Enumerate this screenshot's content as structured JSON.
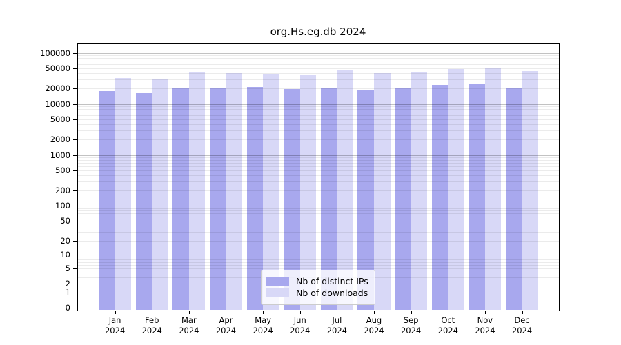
{
  "title": "org.Hs.eg.db 2024",
  "colors": {
    "distinct_ips": "#a8a8ee",
    "downloads": "#d8d8f7",
    "grid_major": "rgba(0,0,0,0.24)",
    "grid_minor": "rgba(0,0,0,0.08)",
    "axis": "#000000"
  },
  "legend": {
    "items": [
      {
        "label": "Nb of distinct IPs",
        "color_key": "distinct_ips"
      },
      {
        "label": "Nb of downloads",
        "color_key": "downloads"
      }
    ]
  },
  "y_axis": {
    "ticks": [
      {
        "label": "100000",
        "value": 100000
      },
      {
        "label": "50000",
        "value": 50000
      },
      {
        "label": "20000",
        "value": 20000
      },
      {
        "label": "10000",
        "value": 10000
      },
      {
        "label": "5000",
        "value": 5000
      },
      {
        "label": "2000",
        "value": 2000
      },
      {
        "label": "1000",
        "value": 1000
      },
      {
        "label": "500",
        "value": 500
      },
      {
        "label": "200",
        "value": 200
      },
      {
        "label": "100",
        "value": 100
      },
      {
        "label": "50",
        "value": 50
      },
      {
        "label": "20",
        "value": 20
      },
      {
        "label": "10",
        "value": 10
      },
      {
        "label": "5",
        "value": 5
      },
      {
        "label": "2",
        "value": 2
      },
      {
        "label": "1",
        "value": 1
      },
      {
        "label": "0",
        "value": 0
      }
    ]
  },
  "x_axis": {
    "months": [
      "Jan",
      "Feb",
      "Mar",
      "Apr",
      "May",
      "Jun",
      "Jul",
      "Aug",
      "Sep",
      "Oct",
      "Nov",
      "Dec"
    ],
    "year": "2024"
  },
  "chart_data": {
    "type": "bar",
    "title": "org.Hs.eg.db 2024",
    "categories": [
      "Jan 2024",
      "Feb 2024",
      "Mar 2024",
      "Apr 2024",
      "May 2024",
      "Jun 2024",
      "Jul 2024",
      "Aug 2024",
      "Sep 2024",
      "Oct 2024",
      "Nov 2024",
      "Dec 2024"
    ],
    "series": [
      {
        "name": "Nb of distinct IPs",
        "values": [
          18000,
          16300,
          21000,
          20500,
          21500,
          19400,
          21200,
          18200,
          20500,
          24000,
          24700,
          20700
        ]
      },
      {
        "name": "Nb of downloads",
        "values": [
          32100,
          31100,
          42400,
          40300,
          38700,
          37500,
          44900,
          40300,
          41500,
          48500,
          50000,
          43800
        ]
      }
    ],
    "xlabel": "",
    "ylabel": "",
    "yscale": "log10(1+y)",
    "ylim": [
      0,
      149000
    ],
    "y_ticks": [
      0,
      1,
      2,
      5,
      10,
      20,
      50,
      100,
      200,
      500,
      1000,
      2000,
      5000,
      10000,
      20000,
      50000,
      100000
    ],
    "grid": "on",
    "legend_position": "lower center"
  }
}
